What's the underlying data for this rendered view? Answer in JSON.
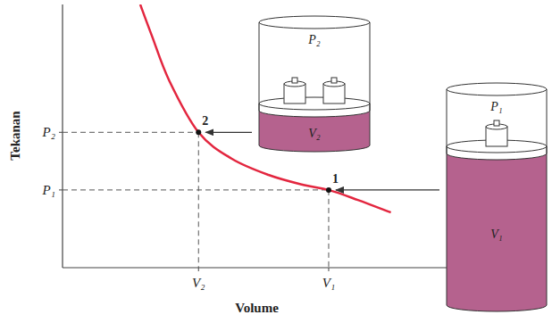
{
  "chart_data": {
    "type": "line",
    "x_label": "Volume",
    "y_label": "Tekanan",
    "x": [
      2.0,
      2.3,
      2.75,
      3.5,
      4.35,
      5.3,
      6.2,
      6.85,
      7.6,
      8.45
    ],
    "values": [
      10.5,
      9.25,
      7.45,
      5.4,
      4.35,
      3.7,
      3.3,
      3.1,
      2.7,
      2.2
    ],
    "color": "#e3263f",
    "xlim": [
      0,
      10
    ],
    "ylim": [
      0,
      10.5
    ],
    "xticks": [
      {
        "value": 3.5,
        "label": "V₂"
      },
      {
        "value": 6.85,
        "label": "V₁"
      }
    ],
    "yticks": [
      {
        "value": 3.1,
        "label": "P₁"
      },
      {
        "value": 5.4,
        "label": "P₂"
      }
    ],
    "grid": false,
    "annotations": [
      {
        "text": "1",
        "x": 6.85,
        "y": 3.1,
        "cylinder": [
          "P₁",
          "V₁"
        ]
      },
      {
        "text": "2",
        "x": 3.5,
        "y": 5.4,
        "cylinder": [
          "P₂",
          "V₂"
        ]
      }
    ]
  }
}
